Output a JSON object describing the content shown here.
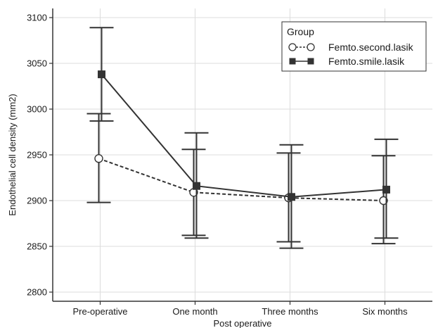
{
  "chart_data": {
    "type": "line",
    "title": "",
    "xlabel": "Post operative",
    "ylabel": "Endothelial cell density (mm2)",
    "categories": [
      "Pre-operative",
      "One month",
      "Three months",
      "Six months"
    ],
    "ylim": [
      2790,
      3110
    ],
    "yticks": [
      2800,
      2850,
      2900,
      2950,
      3000,
      3050,
      3100
    ],
    "grid": true,
    "legend": {
      "title": "Group",
      "position": "top-right"
    },
    "series": [
      {
        "name": "Femto.second.lasik",
        "marker": "open-circle",
        "linestyle": "dashed",
        "color": "#333333",
        "values": [
          2946,
          2909,
          2903,
          2900
        ],
        "err_low": [
          2898,
          2862,
          2855,
          2853
        ],
        "err_high": [
          2995,
          2956,
          2952,
          2949
        ]
      },
      {
        "name": "Femto.smile.lasik",
        "marker": "filled-square",
        "linestyle": "solid",
        "color": "#333333",
        "values": [
          3038,
          2916,
          2904,
          2912
        ],
        "err_low": [
          2987,
          2859,
          2848,
          2859
        ],
        "err_high": [
          3089,
          2974,
          2961,
          2967
        ]
      }
    ]
  }
}
